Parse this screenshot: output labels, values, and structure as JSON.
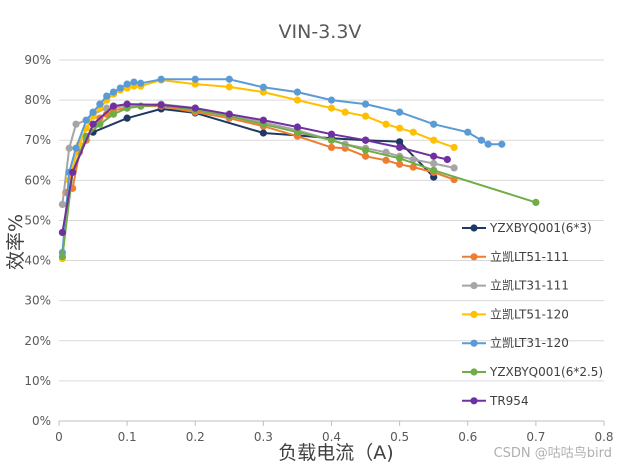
{
  "chart_data": {
    "type": "line",
    "title": "VIN-3.3V",
    "xlabel": "负载电流（A)",
    "ylabel": "效率%",
    "xlim": [
      0,
      0.8
    ],
    "ylim": [
      0,
      90
    ],
    "x_ticks": [
      "0",
      "0.1",
      "0.2",
      "0.3",
      "0.4",
      "0.5",
      "0.6",
      "0.7",
      "0.8"
    ],
    "y_ticks": [
      "0%",
      "10%",
      "20%",
      "30%",
      "40%",
      "50%",
      "60%",
      "70%",
      "80%",
      "90%"
    ],
    "grid": true,
    "legend_position": "right",
    "series": [
      {
        "name": "YZXBYQ001(6*3)",
        "color": "#1f3864",
        "points": [
          [
            0.05,
            72
          ],
          [
            0.1,
            75.5
          ],
          [
            0.15,
            77.8
          ],
          [
            0.2,
            76.8
          ],
          [
            0.3,
            71.8
          ],
          [
            0.35,
            71.2
          ],
          [
            0.4,
            70.5
          ],
          [
            0.45,
            70
          ],
          [
            0.5,
            69.6
          ],
          [
            0.55,
            60.8
          ]
        ]
      },
      {
        "name": "立凯LT51-111",
        "color": "#ed7d31",
        "points": [
          [
            0.01,
            57
          ],
          [
            0.02,
            58
          ],
          [
            0.03,
            67
          ],
          [
            0.04,
            70
          ],
          [
            0.05,
            74
          ],
          [
            0.06,
            75.5
          ],
          [
            0.07,
            76.5
          ],
          [
            0.08,
            77.5
          ],
          [
            0.1,
            78
          ],
          [
            0.12,
            78.5
          ],
          [
            0.15,
            78.5
          ],
          [
            0.2,
            77
          ],
          [
            0.25,
            75.5
          ],
          [
            0.3,
            73.5
          ],
          [
            0.35,
            71
          ],
          [
            0.4,
            68.2
          ],
          [
            0.42,
            68
          ],
          [
            0.45,
            66
          ],
          [
            0.48,
            65
          ],
          [
            0.5,
            64
          ],
          [
            0.52,
            63.3
          ],
          [
            0.55,
            62
          ],
          [
            0.58,
            60.2
          ]
        ]
      },
      {
        "name": "立凯LT31-111",
        "color": "#a5a5a5",
        "points": [
          [
            0.005,
            54
          ],
          [
            0.015,
            68
          ],
          [
            0.025,
            74
          ],
          [
            0.04,
            75
          ],
          [
            0.05,
            76.5
          ],
          [
            0.07,
            78
          ],
          [
            0.1,
            78.5
          ],
          [
            0.15,
            79
          ],
          [
            0.2,
            78
          ],
          [
            0.3,
            74.5
          ],
          [
            0.35,
            72.5
          ],
          [
            0.4,
            70
          ],
          [
            0.42,
            69
          ],
          [
            0.45,
            68
          ],
          [
            0.48,
            67
          ],
          [
            0.5,
            66
          ],
          [
            0.52,
            65.2
          ],
          [
            0.55,
            64.2
          ],
          [
            0.58,
            63.1
          ]
        ]
      },
      {
        "name": "立凯LT51-120",
        "color": "#ffc000",
        "points": [
          [
            0.005,
            40.5
          ],
          [
            0.015,
            60
          ],
          [
            0.03,
            69
          ],
          [
            0.04,
            73
          ],
          [
            0.05,
            76
          ],
          [
            0.06,
            78
          ],
          [
            0.07,
            80
          ],
          [
            0.08,
            81.5
          ],
          [
            0.09,
            82.5
          ],
          [
            0.1,
            83
          ],
          [
            0.11,
            83.5
          ],
          [
            0.12,
            83.5
          ],
          [
            0.15,
            85
          ],
          [
            0.2,
            84
          ],
          [
            0.25,
            83.3
          ],
          [
            0.3,
            82
          ],
          [
            0.35,
            80
          ],
          [
            0.4,
            78
          ],
          [
            0.42,
            77
          ],
          [
            0.45,
            76
          ],
          [
            0.48,
            74
          ],
          [
            0.5,
            73
          ],
          [
            0.52,
            72
          ],
          [
            0.55,
            70
          ],
          [
            0.58,
            68.2
          ]
        ]
      },
      {
        "name": "立凯LT31-120",
        "color": "#5b9bd5",
        "points": [
          [
            0.005,
            42
          ],
          [
            0.015,
            62
          ],
          [
            0.025,
            68
          ],
          [
            0.04,
            75
          ],
          [
            0.05,
            77
          ],
          [
            0.06,
            79
          ],
          [
            0.07,
            81
          ],
          [
            0.08,
            82
          ],
          [
            0.09,
            83
          ],
          [
            0.1,
            84
          ],
          [
            0.11,
            84.5
          ],
          [
            0.12,
            84.2
          ],
          [
            0.15,
            85.2
          ],
          [
            0.2,
            85.2
          ],
          [
            0.25,
            85.2
          ],
          [
            0.3,
            83.2
          ],
          [
            0.35,
            82
          ],
          [
            0.4,
            80
          ],
          [
            0.45,
            79
          ],
          [
            0.5,
            77
          ],
          [
            0.55,
            74
          ],
          [
            0.6,
            72
          ],
          [
            0.62,
            70
          ],
          [
            0.63,
            69
          ],
          [
            0.65,
            69
          ]
        ]
      },
      {
        "name": "YZXBYQ001(6*2.5)",
        "color": "#70ad47",
        "points": [
          [
            0.005,
            41
          ],
          [
            0.02,
            62
          ],
          [
            0.04,
            71
          ],
          [
            0.06,
            74
          ],
          [
            0.08,
            76.5
          ],
          [
            0.1,
            78
          ],
          [
            0.12,
            78.5
          ],
          [
            0.15,
            78.8
          ],
          [
            0.2,
            77.5
          ],
          [
            0.25,
            76
          ],
          [
            0.3,
            74
          ],
          [
            0.35,
            72
          ],
          [
            0.4,
            70
          ],
          [
            0.45,
            67.5
          ],
          [
            0.5,
            65.5
          ],
          [
            0.55,
            62.5
          ],
          [
            0.7,
            54.5
          ]
        ]
      },
      {
        "name": "TR954",
        "color": "#7030a0",
        "points": [
          [
            0.005,
            47
          ],
          [
            0.02,
            62
          ],
          [
            0.05,
            74
          ],
          [
            0.08,
            78.5
          ],
          [
            0.1,
            79
          ],
          [
            0.15,
            78.8
          ],
          [
            0.2,
            78
          ],
          [
            0.25,
            76.5
          ],
          [
            0.3,
            75
          ],
          [
            0.35,
            73.3
          ],
          [
            0.4,
            71.5
          ],
          [
            0.45,
            70
          ],
          [
            0.5,
            68.2
          ],
          [
            0.55,
            66
          ],
          [
            0.57,
            65.2
          ]
        ]
      }
    ]
  },
  "watermark": "CSDN @咕咕鸟bird"
}
